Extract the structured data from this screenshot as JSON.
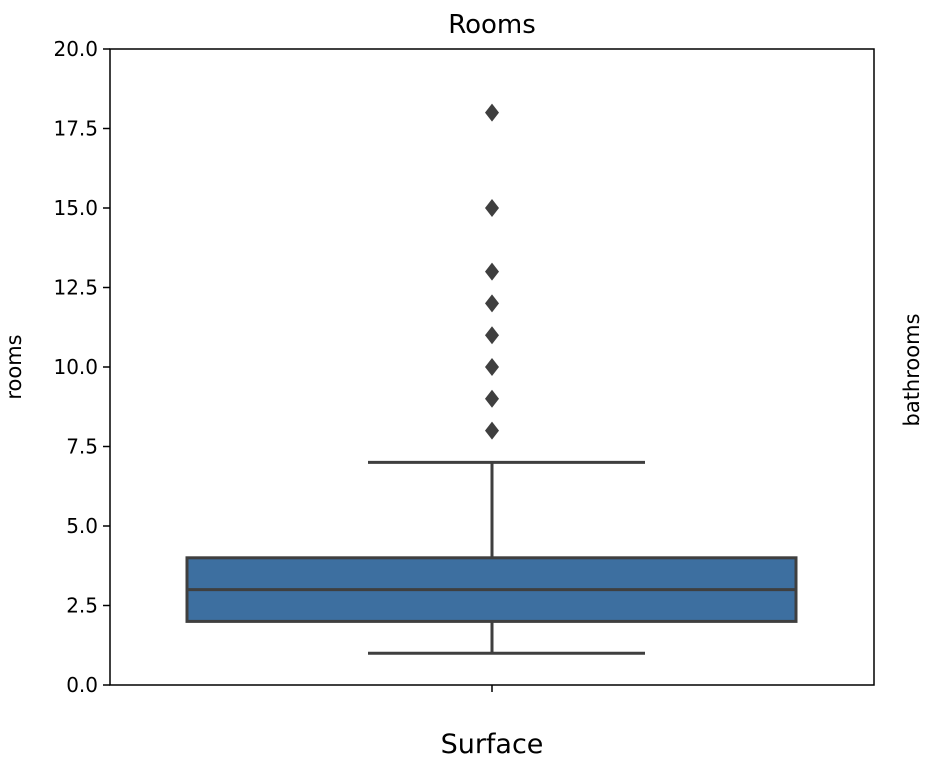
{
  "chart_data": {
    "type": "box",
    "title": "Rooms",
    "xlabel": "Surface",
    "ylabel": "rooms",
    "right_label": "bathrooms",
    "ylim": [
      0.0,
      20.0
    ],
    "yticks": [
      "0.0",
      "2.5",
      "5.0",
      "7.5",
      "10.0",
      "12.5",
      "15.0",
      "17.5",
      "20.0"
    ],
    "grid": false,
    "box": {
      "whisker_low": 1,
      "q1": 2,
      "median": 3,
      "q3": 4,
      "whisker_high": 7,
      "outliers": [
        8,
        9,
        10,
        11,
        12,
        13,
        15,
        18
      ]
    },
    "colors": {
      "box_fill": "#3d6fa0",
      "lines": "#3f3f3f",
      "outliers": "#3f3f3f",
      "axes": "#000000"
    }
  }
}
